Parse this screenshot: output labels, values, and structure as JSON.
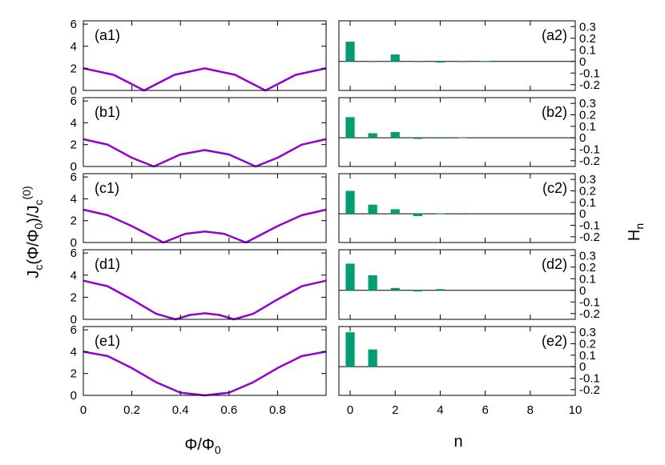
{
  "colors": {
    "curve": "#9400d3",
    "bar": "#009e73",
    "axis": "#000000"
  },
  "left_axis_label": "J_c(Φ/Φ_0)/J_c^(0)",
  "right_axis_label": "H_n",
  "left_xlabel": "Φ/Φ_0",
  "right_xlabel": "n",
  "chart_data": [
    {
      "type": "line",
      "panel_label": "(a1)",
      "xlim": [
        0,
        1
      ],
      "ylim": [
        0,
        6.3
      ],
      "yticks": [
        "0",
        "2",
        "4",
        "6"
      ],
      "xticks": [
        "0",
        "0.2",
        "0.4",
        "0.6",
        "0.8"
      ],
      "x": [
        0,
        0.125,
        0.25,
        0.375,
        0.5,
        0.625,
        0.75,
        0.875,
        1.0
      ],
      "y": [
        2.0,
        1.41,
        0.0,
        1.41,
        2.0,
        1.41,
        0.0,
        1.41,
        2.0
      ]
    },
    {
      "type": "bar",
      "panel_label": "(a2)",
      "xlim": [
        -0.5,
        10
      ],
      "ylim": [
        -0.25,
        0.35
      ],
      "yticks": [
        "0.3",
        "0.2",
        "0.1",
        "0",
        "-0.1",
        "-0.2"
      ],
      "xticks": [
        "0",
        "2",
        "4",
        "6",
        "8",
        "10"
      ],
      "categories": [
        0,
        1,
        2,
        3,
        4,
        5,
        6
      ],
      "values": [
        0.17,
        0.0,
        0.06,
        0.0,
        -0.01,
        0.0,
        0.002
      ]
    },
    {
      "type": "line",
      "panel_label": "(b1)",
      "xlim": [
        0,
        1
      ],
      "ylim": [
        0,
        6.3
      ],
      "yticks": [
        "0",
        "2",
        "4",
        "6"
      ],
      "xticks": [
        "0",
        "0.2",
        "0.4",
        "0.6",
        "0.8"
      ],
      "x": [
        0,
        0.1,
        0.2,
        0.29,
        0.4,
        0.5,
        0.6,
        0.71,
        0.8,
        0.9,
        1.0
      ],
      "y": [
        2.5,
        2.0,
        0.8,
        0.0,
        1.1,
        1.5,
        1.1,
        0.0,
        0.8,
        2.0,
        2.5
      ]
    },
    {
      "type": "bar",
      "panel_label": "(b2)",
      "xlim": [
        -0.5,
        10
      ],
      "ylim": [
        -0.25,
        0.35
      ],
      "yticks": [
        "0.3",
        "0.2",
        "0.1",
        "0",
        "-0.1",
        "-0.2"
      ],
      "xticks": [
        "0",
        "2",
        "4",
        "6",
        "8",
        "10"
      ],
      "categories": [
        0,
        1,
        2,
        3,
        4,
        5
      ],
      "values": [
        0.18,
        0.04,
        0.05,
        -0.01,
        -0.004,
        0.004
      ]
    },
    {
      "type": "line",
      "panel_label": "(c1)",
      "xlim": [
        0,
        1
      ],
      "ylim": [
        0,
        6.3
      ],
      "yticks": [
        "0",
        "2",
        "4",
        "6"
      ],
      "xticks": [
        "0",
        "0.2",
        "0.4",
        "0.6",
        "0.8"
      ],
      "x": [
        0,
        0.1,
        0.2,
        0.33,
        0.42,
        0.5,
        0.58,
        0.67,
        0.8,
        0.9,
        1.0
      ],
      "y": [
        3.0,
        2.5,
        1.5,
        0.0,
        0.8,
        1.0,
        0.8,
        0.0,
        1.5,
        2.5,
        3.0
      ]
    },
    {
      "type": "bar",
      "panel_label": "(c2)",
      "xlim": [
        -0.5,
        10
      ],
      "ylim": [
        -0.25,
        0.35
      ],
      "yticks": [
        "0.3",
        "0.2",
        "0.1",
        "0",
        "-0.1",
        "-0.2"
      ],
      "xticks": [
        "0",
        "2",
        "4",
        "6",
        "8",
        "10"
      ],
      "categories": [
        0,
        1,
        2,
        3,
        4,
        5
      ],
      "values": [
        0.2,
        0.08,
        0.04,
        -0.02,
        0.003,
        -0.003
      ]
    },
    {
      "type": "line",
      "panel_label": "(d1)",
      "xlim": [
        0,
        1
      ],
      "ylim": [
        0,
        6.3
      ],
      "yticks": [
        "0",
        "2",
        "4",
        "6"
      ],
      "xticks": [
        "0",
        "0.2",
        "0.4",
        "0.6",
        "0.8"
      ],
      "x": [
        0,
        0.1,
        0.2,
        0.3,
        0.38,
        0.44,
        0.5,
        0.56,
        0.62,
        0.7,
        0.8,
        0.9,
        1.0
      ],
      "y": [
        3.5,
        3.0,
        1.8,
        0.5,
        0.0,
        0.4,
        0.55,
        0.4,
        0.0,
        0.5,
        1.8,
        3.0,
        3.5
      ]
    },
    {
      "type": "bar",
      "panel_label": "(d2)",
      "xlim": [
        -0.5,
        10
      ],
      "ylim": [
        -0.25,
        0.35
      ],
      "yticks": [
        "0.3",
        "0.2",
        "0.1",
        "0",
        "-0.1",
        "-0.2"
      ],
      "xticks": [
        "0",
        "2",
        "4",
        "6",
        "8",
        "10"
      ],
      "categories": [
        0,
        1,
        2,
        3,
        4
      ],
      "values": [
        0.23,
        0.13,
        0.02,
        -0.01,
        0.01
      ]
    },
    {
      "type": "line",
      "panel_label": "(e1)",
      "xlim": [
        0,
        1
      ],
      "ylim": [
        0,
        6.3
      ],
      "yticks": [
        "0",
        "2",
        "4",
        "6"
      ],
      "xticks": [
        "0",
        "0.2",
        "0.4",
        "0.6",
        "0.8"
      ],
      "x": [
        0,
        0.1,
        0.2,
        0.3,
        0.4,
        0.5,
        0.6,
        0.7,
        0.8,
        0.9,
        1.0
      ],
      "y": [
        4.0,
        3.6,
        2.5,
        1.2,
        0.25,
        0.0,
        0.25,
        1.2,
        2.5,
        3.6,
        4.0
      ]
    },
    {
      "type": "bar",
      "panel_label": "(e2)",
      "xlim": [
        -0.5,
        10
      ],
      "ylim": [
        -0.25,
        0.35
      ],
      "yticks": [
        "0.3",
        "0.2",
        "0.1",
        "0",
        "-0.1",
        "-0.2"
      ],
      "xticks": [
        "0",
        "2",
        "4",
        "6",
        "8",
        "10"
      ],
      "categories": [
        0,
        1
      ],
      "values": [
        0.3,
        0.15
      ]
    }
  ]
}
